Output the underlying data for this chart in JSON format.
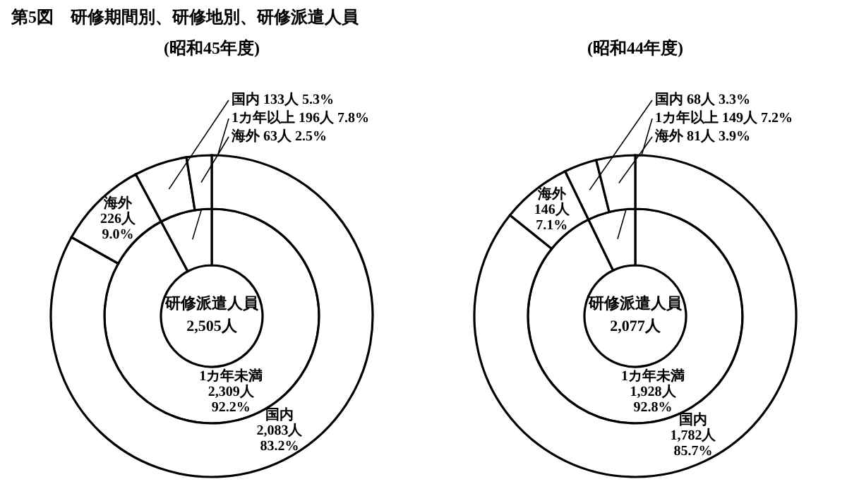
{
  "chart_data": [
    {
      "type": "donut",
      "title": "第5図　研修期間別、研修地別、研修派遣人員",
      "subtitle": "(昭和45年度)",
      "categories": [
        "1カ年未満",
        "1カ年以上"
      ],
      "values": [
        2309,
        196
      ],
      "colors": [
        "#ffffff",
        "#ffffff"
      ],
      "value_labels": [
        "2,309人 92.2%",
        "196人 7.8%"
      ],
      "annotations": [
        "研修派遣人員",
        "2,505人"
      ]
    },
    {
      "type": "donut",
      "categories": [
        "国内",
        "海外",
        "国内",
        "海外"
      ],
      "values": [
        2083,
        226,
        133,
        63
      ],
      "colors": [
        "#ffffff",
        "#ffffff",
        "#ffffff",
        "#ffffff"
      ],
      "value_labels": [
        "2,083人 83.2%",
        "226人 9.0%",
        "133人 5.3%",
        "63人 2.5%"
      ]
    },
    {
      "type": "donut",
      "subtitle": "(昭和44年度)",
      "categories": [
        "1カ年未満",
        "1カ年以上"
      ],
      "values": [
        1928,
        149
      ],
      "colors": [
        "#ffffff",
        "#ffffff"
      ],
      "value_labels": [
        "1,928人 92.8%",
        "149人 7.2%"
      ],
      "annotations": [
        "研修派遣人員",
        "2,077人"
      ]
    },
    {
      "type": "donut",
      "categories": [
        "国内",
        "海外",
        "国内",
        "海外"
      ],
      "values": [
        1782,
        146,
        68,
        81
      ],
      "colors": [
        "#ffffff",
        "#ffffff",
        "#ffffff",
        "#ffffff"
      ],
      "value_labels": [
        "1,782人 85.7%",
        "146人 7.1%",
        "68人 3.3%",
        "81人 3.9%"
      ]
    }
  ]
}
